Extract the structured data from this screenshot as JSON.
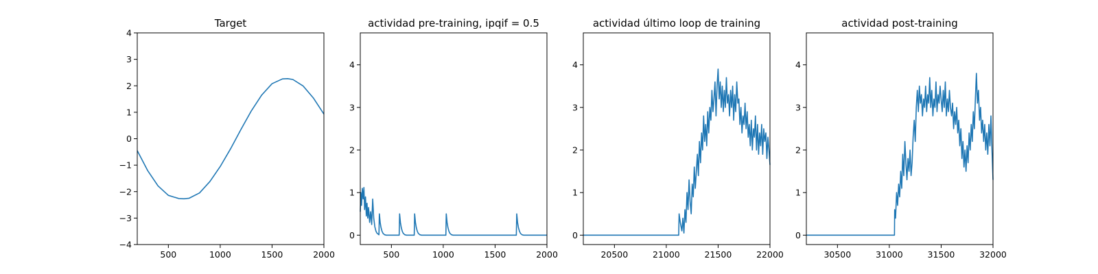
{
  "chart_data": [
    {
      "type": "line",
      "title": "Target",
      "xlim": [
        200,
        2000
      ],
      "ylim": [
        -4,
        4
      ],
      "xticks": [
        500,
        1000,
        1500,
        2000
      ],
      "yticks": [
        -4,
        -3,
        -2,
        -1,
        0,
        1,
        2,
        3,
        4
      ],
      "color": "#1f77b4",
      "series": [
        {
          "x": [
            200,
            300,
            400,
            500,
            600,
            650,
            700,
            800,
            900,
            1000,
            1100,
            1200,
            1300,
            1400,
            1500,
            1600,
            1650,
            1700,
            1800,
            1900,
            2000
          ],
          "y": [
            -0.45,
            -1.2,
            -1.78,
            -2.14,
            -2.26,
            -2.27,
            -2.25,
            -2.05,
            -1.62,
            -1.05,
            -0.38,
            0.35,
            1.05,
            1.65,
            2.08,
            2.26,
            2.27,
            2.24,
            1.99,
            1.53,
            0.93
          ]
        }
      ]
    },
    {
      "type": "line",
      "title": "actividad pre-training, ipqif = 0.5",
      "xlim": [
        200,
        2000
      ],
      "ylim": [
        -0.22,
        4.75
      ],
      "xticks": [
        500,
        1000,
        1500,
        2000
      ],
      "yticks": [
        0,
        1,
        2,
        3,
        4
      ],
      "color": "#1f77b4",
      "series": [
        {
          "x": [
            200,
            205,
            212,
            220,
            228,
            235,
            242,
            250,
            258,
            265,
            272,
            280,
            290,
            300,
            310,
            320,
            330,
            340,
            350,
            360,
            380,
            384,
            392,
            400,
            410,
            420,
            435,
            450,
            575,
            579,
            587,
            595,
            605,
            615,
            630,
            645,
            720,
            724,
            732,
            740,
            750,
            760,
            775,
            790,
            1025,
            1029,
            1037,
            1045,
            1055,
            1065,
            1080,
            1095,
            1705,
            1709,
            1717,
            1725,
            1735,
            1745,
            1760,
            1775,
            2000
          ],
          "y": [
            0.55,
            1.0,
            0.7,
            1.1,
            0.85,
            1.12,
            0.6,
            0.9,
            0.45,
            0.75,
            0.4,
            0.65,
            0.3,
            0.55,
            0.25,
            0.85,
            0.4,
            0.2,
            0.1,
            0.05,
            0.01,
            0.5,
            0.3,
            0.18,
            0.09,
            0.04,
            0.01,
            0.0,
            0.0,
            0.5,
            0.3,
            0.18,
            0.09,
            0.04,
            0.01,
            0.0,
            0.0,
            0.5,
            0.3,
            0.18,
            0.09,
            0.04,
            0.01,
            0.0,
            0.0,
            0.5,
            0.3,
            0.18,
            0.09,
            0.04,
            0.01,
            0.0,
            0.0,
            0.5,
            0.3,
            0.18,
            0.09,
            0.04,
            0.01,
            0.0,
            0.0
          ]
        }
      ]
    },
    {
      "type": "line",
      "title": "actividad último loop de training",
      "xlim": [
        20200,
        22000
      ],
      "ylim": [
        -0.22,
        4.75
      ],
      "xticks": [
        20500,
        21000,
        21500,
        22000
      ],
      "yticks": [
        0,
        1,
        2,
        3,
        4
      ],
      "color": "#1f77b4",
      "series": [
        {
          "x": [
            20200,
            21120,
            21124,
            21135,
            21150,
            21160,
            21170,
            21180,
            21190,
            21200,
            21210,
            21220,
            21230,
            21240,
            21250,
            21260,
            21270,
            21280,
            21290,
            21300,
            21310,
            21320,
            21330,
            21340,
            21350,
            21360,
            21370,
            21380,
            21390,
            21400,
            21410,
            21420,
            21430,
            21440,
            21450,
            21460,
            21470,
            21480,
            21490,
            21500,
            21510,
            21520,
            21530,
            21540,
            21550,
            21560,
            21570,
            21580,
            21590,
            21600,
            21610,
            21620,
            21630,
            21640,
            21650,
            21660,
            21670,
            21680,
            21690,
            21700,
            21710,
            21720,
            21730,
            21740,
            21750,
            21760,
            21770,
            21780,
            21790,
            21800,
            21810,
            21820,
            21830,
            21840,
            21850,
            21860,
            21870,
            21880,
            21890,
            21900,
            21910,
            21920,
            21930,
            21940,
            21950,
            21960,
            21970,
            21980,
            21990,
            22000
          ],
          "y": [
            0.0,
            0.0,
            0.5,
            0.3,
            0.1,
            0.4,
            0.05,
            0.6,
            0.3,
            1.0,
            0.6,
            1.3,
            0.8,
            0.5,
            1.2,
            0.9,
            1.6,
            1.1,
            1.5,
            1.9,
            1.4,
            2.2,
            1.7,
            2.4,
            2.0,
            2.8,
            2.2,
            2.6,
            2.1,
            2.9,
            2.4,
            3.0,
            2.7,
            3.4,
            2.9,
            3.2,
            3.6,
            2.8,
            3.5,
            3.9,
            3.2,
            3.6,
            3.0,
            3.5,
            2.9,
            3.4,
            3.0,
            3.7,
            3.1,
            3.3,
            2.8,
            3.4,
            3.0,
            3.5,
            2.7,
            3.3,
            2.9,
            3.6,
            3.1,
            3.2,
            2.6,
            3.0,
            2.4,
            2.8,
            2.6,
            3.1,
            2.5,
            2.9,
            2.3,
            2.6,
            2.1,
            2.7,
            2.0,
            2.5,
            2.3,
            2.8,
            2.0,
            2.6,
            1.9,
            2.4,
            2.1,
            2.6,
            1.9,
            2.5,
            2.2,
            2.4,
            1.8,
            2.3,
            2.0,
            1.65
          ]
        }
      ]
    },
    {
      "type": "line",
      "title": "actividad post-training",
      "xlim": [
        30200,
        32000
      ],
      "ylim": [
        -0.22,
        4.75
      ],
      "xticks": [
        30500,
        31000,
        31500,
        32000
      ],
      "yticks": [
        0,
        1,
        2,
        3,
        4
      ],
      "color": "#1f77b4",
      "series": [
        {
          "x": [
            30200,
            31050,
            31052,
            31060,
            31070,
            31080,
            31090,
            31100,
            31110,
            31120,
            31130,
            31140,
            31150,
            31160,
            31170,
            31180,
            31190,
            31200,
            31210,
            31220,
            31230,
            31240,
            31250,
            31260,
            31270,
            31280,
            31290,
            31300,
            31310,
            31320,
            31330,
            31340,
            31350,
            31360,
            31370,
            31380,
            31390,
            31400,
            31410,
            31420,
            31430,
            31440,
            31450,
            31460,
            31470,
            31480,
            31490,
            31500,
            31510,
            31520,
            31530,
            31540,
            31550,
            31560,
            31570,
            31580,
            31590,
            31600,
            31610,
            31620,
            31630,
            31640,
            31650,
            31660,
            31670,
            31680,
            31690,
            31700,
            31710,
            31720,
            31730,
            31740,
            31750,
            31760,
            31770,
            31780,
            31790,
            31800,
            31810,
            31820,
            31830,
            31840,
            31850,
            31860,
            31870,
            31880,
            31890,
            31900,
            31910,
            31920,
            31930,
            31940,
            31950,
            31960,
            31970,
            31980,
            31990,
            32000
          ],
          "y": [
            0.0,
            0.0,
            0.6,
            0.4,
            1.0,
            0.7,
            1.2,
            0.9,
            1.5,
            1.1,
            1.9,
            1.4,
            2.2,
            1.7,
            1.3,
            1.8,
            1.5,
            2.0,
            1.4,
            1.7,
            2.3,
            2.7,
            2.2,
            3.0,
            3.4,
            2.9,
            3.5,
            3.1,
            3.3,
            2.8,
            3.2,
            3.0,
            3.5,
            2.9,
            3.3,
            3.1,
            3.7,
            3.0,
            3.4,
            2.8,
            3.2,
            3.0,
            3.6,
            2.9,
            3.3,
            3.1,
            3.5,
            3.2,
            2.9,
            3.4,
            3.0,
            3.6,
            2.8,
            3.2,
            2.9,
            3.4,
            3.0,
            2.8,
            3.1,
            2.5,
            2.9,
            2.6,
            3.0,
            2.4,
            2.7,
            2.1,
            2.5,
            1.8,
            2.2,
            1.6,
            2.0,
            1.5,
            2.1,
            1.7,
            2.4,
            2.0,
            2.6,
            2.2,
            2.9,
            2.5,
            3.2,
            3.8,
            3.1,
            3.4,
            2.7,
            3.0,
            2.4,
            2.7,
            2.2,
            2.6,
            2.0,
            2.4,
            1.9,
            2.6,
            2.1,
            2.8,
            2.0,
            1.3
          ]
        }
      ]
    }
  ]
}
